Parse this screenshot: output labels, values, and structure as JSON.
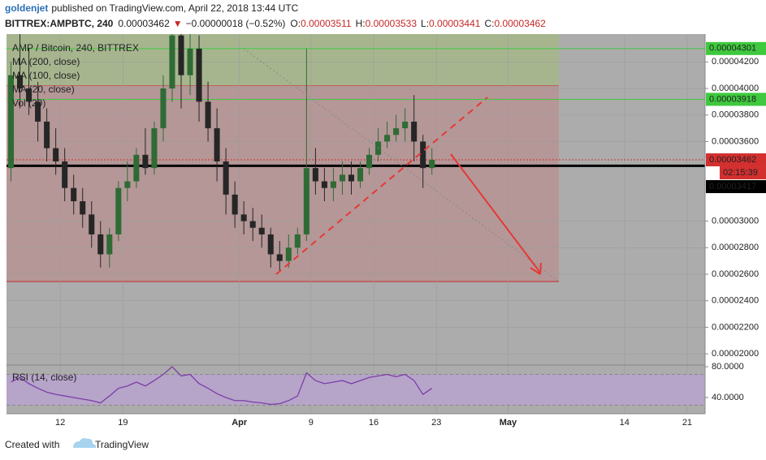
{
  "header": {
    "author": "goldenjet",
    "published": "published on TradingView.com, April 22, 2018 13:44 UTC",
    "symbol": "BITTREX:AMPBTC, 240",
    "last": "0.00003462",
    "arrow": "▼",
    "change": "−0.00000018 (−0.52%)",
    "ohlc": [
      {
        "key": "O:",
        "value": "0.00003511"
      },
      {
        "key": "H:",
        "value": "0.00003533"
      },
      {
        "key": "L:",
        "value": "0.00003441"
      },
      {
        "key": "C:",
        "value": "0.00003462"
      }
    ]
  },
  "footer": {
    "text": "Created with",
    "brand": "TradingView"
  },
  "chart_data": {
    "type": "candlestick",
    "legend": [
      "AMP / Bitcoin, 240, BITTREX",
      "MA (200, close)",
      "MA (100, close)",
      "MA (20, close)",
      "Vol (20)"
    ],
    "x": [
      "2018-03-06",
      "2018-03-07",
      "2018-03-08",
      "2018-03-09",
      "2018-03-10",
      "2018-03-11",
      "2018-03-12",
      "2018-03-13",
      "2018-03-14",
      "2018-03-15",
      "2018-03-16",
      "2018-03-17",
      "2018-03-18",
      "2018-03-19",
      "2018-03-20",
      "2018-03-21",
      "2018-03-22",
      "2018-03-23",
      "2018-03-24",
      "2018-03-25",
      "2018-03-26",
      "2018-03-27",
      "2018-03-28",
      "2018-03-29",
      "2018-03-30",
      "2018-03-31",
      "2018-04-01",
      "2018-04-02",
      "2018-04-03",
      "2018-04-04",
      "2018-04-05",
      "2018-04-06",
      "2018-04-07",
      "2018-04-08",
      "2018-04-09",
      "2018-04-10",
      "2018-04-11",
      "2018-04-12",
      "2018-04-13",
      "2018-04-14",
      "2018-04-15",
      "2018-04-16",
      "2018-04-17",
      "2018-04-18",
      "2018-04-19",
      "2018-04-20",
      "2018-04-21",
      "2018-04-22"
    ],
    "open": [
      3.4e-05,
      4.1e-05,
      4e-05,
      3.9e-05,
      3.75e-05,
      3.55e-05,
      3.45e-05,
      3.25e-05,
      3.15e-05,
      3.05e-05,
      2.9e-05,
      2.75e-05,
      2.9e-05,
      3.25e-05,
      3.3e-05,
      3.5e-05,
      3.4e-05,
      3.7e-05,
      4e-05,
      4.4e-05,
      4.1e-05,
      4.3e-05,
      3.9e-05,
      3.7e-05,
      3.45e-05,
      3.2e-05,
      3.05e-05,
      3e-05,
      2.95e-05,
      2.9e-05,
      2.75e-05,
      2.7e-05,
      2.8e-05,
      2.9e-05,
      3.4e-05,
      3.3e-05,
      3.25e-05,
      3.3e-05,
      3.35e-05,
      3.3e-05,
      3.4e-05,
      3.5e-05,
      3.6e-05,
      3.65e-05,
      3.7e-05,
      3.75e-05,
      3.6e-05,
      3.4e-05
    ],
    "high": [
      4.2e-05,
      4.45e-05,
      4.3e-05,
      4.05e-05,
      3.85e-05,
      3.7e-05,
      3.55e-05,
      3.35e-05,
      3.25e-05,
      3.15e-05,
      3e-05,
      2.95e-05,
      3.3e-05,
      3.45e-05,
      3.55e-05,
      3.7e-05,
      3.75e-05,
      4.1e-05,
      4.5e-05,
      4.45e-05,
      4.45e-05,
      4.4e-05,
      4.05e-05,
      3.85e-05,
      3.55e-05,
      3.3e-05,
      3.15e-05,
      3.1e-05,
      3.05e-05,
      2.95e-05,
      2.85e-05,
      2.9e-05,
      2.95e-05,
      4.3e-05,
      3.55e-05,
      3.4e-05,
      3.4e-05,
      3.45e-05,
      3.45e-05,
      3.45e-05,
      3.55e-05,
      3.7e-05,
      3.75e-05,
      3.8e-05,
      3.85e-05,
      3.95e-05,
      3.65e-05,
      3.55e-05
    ],
    "low": [
      3.3e-05,
      3.85e-05,
      3.8e-05,
      3.6e-05,
      3.45e-05,
      3.35e-05,
      3.15e-05,
      3.05e-05,
      2.95e-05,
      2.8e-05,
      2.65e-05,
      2.65e-05,
      2.85e-05,
      3.15e-05,
      3.25e-05,
      3.35e-05,
      3.35e-05,
      3.6e-05,
      3.9e-05,
      3.85e-05,
      3.95e-05,
      3.75e-05,
      3.6e-05,
      3.3e-05,
      3.05e-05,
      2.95e-05,
      2.9e-05,
      2.85e-05,
      2.8e-05,
      2.65e-05,
      2.62e-05,
      2.65e-05,
      2.75e-05,
      2.85e-05,
      3.2e-05,
      3.15e-05,
      3.15e-05,
      3.2e-05,
      3.2e-05,
      3.25e-05,
      3.35e-05,
      3.45e-05,
      3.55e-05,
      3.6e-05,
      3.6e-05,
      3.45e-05,
      3.25e-05,
      3.35e-05
    ],
    "close": [
      4.1e-05,
      4e-05,
      3.9e-05,
      3.75e-05,
      3.55e-05,
      3.45e-05,
      3.25e-05,
      3.15e-05,
      3.05e-05,
      2.9e-05,
      2.75e-05,
      2.9e-05,
      3.25e-05,
      3.3e-05,
      3.5e-05,
      3.4e-05,
      3.7e-05,
      4e-05,
      4.4e-05,
      4.1e-05,
      4.3e-05,
      3.9e-05,
      3.7e-05,
      3.45e-05,
      3.2e-05,
      3.05e-05,
      3e-05,
      2.95e-05,
      2.9e-05,
      2.75e-05,
      2.7e-05,
      2.8e-05,
      2.9e-05,
      3.4e-05,
      3.3e-05,
      3.25e-05,
      3.3e-05,
      3.35e-05,
      3.3e-05,
      3.4e-05,
      3.5e-05,
      3.6e-05,
      3.65e-05,
      3.7e-05,
      3.75e-05,
      3.6e-05,
      3.4e-05,
      3.462e-05
    ],
    "up_color": "#2f6b35",
    "down_color": "#262626",
    "xlim": [
      "2018-03-06",
      "2018-05-23"
    ],
    "xticks": [
      {
        "value": "2018-03-12",
        "label": "12"
      },
      {
        "value": "2018-03-19",
        "label": "19"
      },
      {
        "value": "2018-04-01",
        "label": "Apr"
      },
      {
        "value": "2018-04-09",
        "label": "9"
      },
      {
        "value": "2018-04-16",
        "label": "16"
      },
      {
        "value": "2018-04-23",
        "label": "23"
      },
      {
        "value": "2018-05-01",
        "label": "May"
      },
      {
        "value": "2018-05-14",
        "label": "14"
      },
      {
        "value": "2018-05-21",
        "label": "21"
      }
    ],
    "ylim": [
      1.915e-05,
      4.41e-05
    ],
    "yticks": [
      {
        "value": 4.2e-05,
        "label": "0.00004200"
      },
      {
        "value": 4e-05,
        "label": "0.00004000"
      },
      {
        "value": 3.8e-05,
        "label": "0.00003800"
      },
      {
        "value": 3.6e-05,
        "label": "0.00003600"
      },
      {
        "value": 3e-05,
        "label": "0.00003000"
      },
      {
        "value": 2.8e-05,
        "label": "0.00002800"
      },
      {
        "value": 2.6e-05,
        "label": "0.00002600"
      },
      {
        "value": 2.4e-05,
        "label": "0.00002400"
      },
      {
        "value": 2.2e-05,
        "label": "0.00002200"
      },
      {
        "value": 2e-05,
        "label": "0.00002000"
      }
    ],
    "grid": true,
    "zones": [
      {
        "from": 4.02e-05,
        "to": 4.41e-05,
        "color": "#a7b58f",
        "border": "#c62828"
      },
      {
        "from": 2.545e-05,
        "to": 4.02e-05,
        "color": "#b59797",
        "border": "#c62828"
      }
    ],
    "levels": [
      {
        "value": 4.301e-05,
        "color": "#3ec93e",
        "width": 1
      },
      {
        "value": 3.918e-05,
        "color": "#3ec93e",
        "width": 1
      },
      {
        "value": 3.462e-05,
        "color": "#d32f2f",
        "width": 1,
        "dash": true
      },
      {
        "value": 3.417e-05,
        "color": "#000000",
        "width": 3
      }
    ],
    "countdown": "02:15:39",
    "rsi": {
      "title": "RSI (14, close)",
      "color": "#7b3fa8",
      "band": [
        30,
        70
      ],
      "ylim": [
        18.9,
        82.1
      ],
      "yticks": [
        {
          "value": 80,
          "label": "80.0000"
        },
        {
          "value": 40,
          "label": "40.0000"
        }
      ],
      "values": [
        60,
        66,
        58,
        52,
        47,
        44,
        42,
        40,
        38,
        36,
        33,
        42,
        52,
        55,
        60,
        55,
        62,
        70,
        80,
        68,
        70,
        58,
        52,
        45,
        40,
        36,
        36,
        34,
        33,
        31,
        32,
        36,
        42,
        72,
        62,
        58,
        60,
        62,
        58,
        62,
        66,
        68,
        70,
        67,
        70,
        62,
        44,
        52
      ]
    }
  }
}
